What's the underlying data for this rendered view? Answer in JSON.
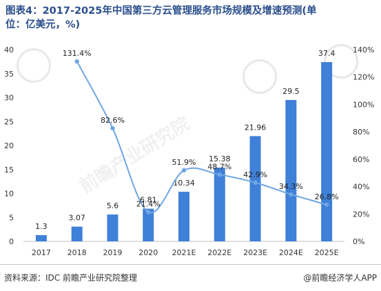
{
  "title_line1": "图表4：2017-2025年中国第三方云管理服务市场规模及增速预测(单",
  "title_line2": "位：亿美元，%)",
  "source": "资料来源：IDC 前瞻产业研究院整理",
  "brand": "@前瞻经济学人APP",
  "watermark": "前瞻产业研究院",
  "colors": {
    "bar": "#3f80d8",
    "line": "#6fa6e4",
    "axis": "#888888",
    "title": "#2b4f8c"
  },
  "chart_data": {
    "type": "bar+line",
    "categories": [
      "2017",
      "2018",
      "2019",
      "2020",
      "2021E",
      "2022E",
      "2023E",
      "2024E",
      "2025E"
    ],
    "series": [
      {
        "type": "bar",
        "axis": "left",
        "values": [
          1.3,
          3.07,
          5.6,
          6.81,
          10.34,
          15.38,
          21.96,
          29.5,
          37.4
        ],
        "labels": [
          "1.3",
          "3.07",
          "5.6",
          "6.81",
          "10.34",
          "15.38",
          "21.96",
          "29.5",
          "37.4"
        ]
      },
      {
        "type": "line",
        "axis": "right",
        "values": [
          null,
          131.4,
          82.6,
          21.4,
          51.9,
          48.7,
          42.9,
          34.3,
          26.8
        ],
        "labels": [
          "",
          "131.4%",
          "82.6%",
          "21.4%",
          "51.9%",
          "48.7%",
          "42.9%",
          "34.3%",
          "26.8%"
        ]
      }
    ],
    "ylim_left": [
      0,
      40
    ],
    "yticks_left": [
      "0",
      "5",
      "10",
      "15",
      "20",
      "25",
      "30",
      "35",
      "40"
    ],
    "ylim_right": [
      0,
      140
    ],
    "yticks_right": [
      "0%",
      "20%",
      "40%",
      "60%",
      "80%",
      "100%",
      "120%",
      "140%"
    ],
    "grid": false,
    "legend": "none"
  }
}
